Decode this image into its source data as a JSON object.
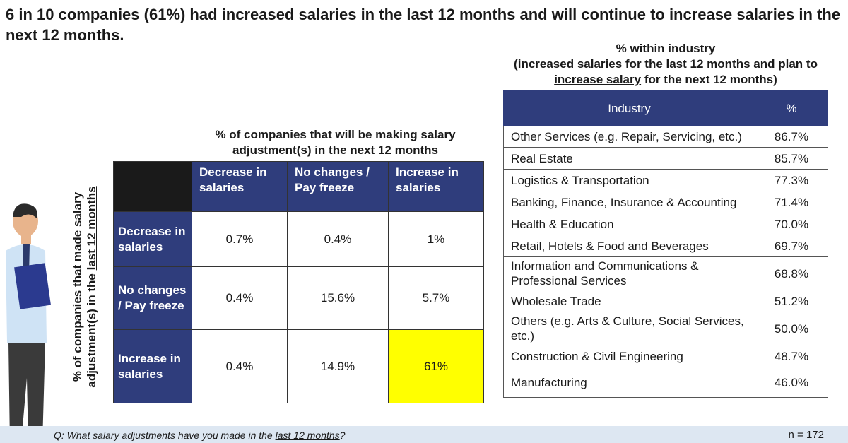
{
  "title": "6 in 10 companies (61%) had increased salaries in the last 12 months and will continue to increase salaries in the next 12 months.",
  "matrix": {
    "column_caption": [
      "% of companies that will be making salary adjustment(s) in the ",
      "next 12 months"
    ],
    "row_caption": [
      "% of companies that made salary adjustment(s) in the ",
      "last 12 months"
    ],
    "columns": [
      "Decrease in salaries",
      "No changes / Pay freeze",
      "Increase in salaries"
    ],
    "rows": [
      {
        "label": "Decrease in salaries",
        "cells": [
          "0.7%",
          "0.4%",
          "1%"
        ]
      },
      {
        "label": "No changes / Pay freeze",
        "cells": [
          "0.4%",
          "15.6%",
          "5.7%"
        ]
      },
      {
        "label": "Increase in salaries",
        "cells": [
          "0.4%",
          "14.9%",
          "61%"
        ]
      }
    ]
  },
  "industry": {
    "caption_title": "% within industry",
    "caption": [
      "(",
      "increased salaries",
      " for the last 12 months ",
      "and",
      " ",
      "plan to increase salary",
      " for the next 12 months)"
    ],
    "header": [
      "Industry",
      "%"
    ],
    "rows": [
      [
        "Other Services (e.g. Repair, Servicing, etc.)",
        "86.7%"
      ],
      [
        "Real Estate",
        "85.7%"
      ],
      [
        "Logistics & Transportation",
        "77.3%"
      ],
      [
        "Banking, Finance, Insurance & Accounting",
        "71.4%"
      ],
      [
        "Health & Education",
        "70.0%"
      ],
      [
        "Retail, Hotels & Food and Beverages",
        "69.7%"
      ],
      [
        "Information and Communications & Professional Services",
        "68.8%"
      ],
      [
        "Wholesale Trade",
        "51.2%"
      ],
      [
        "Others (e.g. Arts & Culture, Social Services, etc.)",
        "50.0%"
      ],
      [
        "Construction & Civil Engineering",
        "48.7%"
      ],
      [
        "Manufacturing",
        "46.0%"
      ]
    ]
  },
  "footer": {
    "question": [
      "Q: What salary adjustments have you made in the ",
      "last 12 months",
      "?"
    ],
    "sample": "n = 172"
  }
}
